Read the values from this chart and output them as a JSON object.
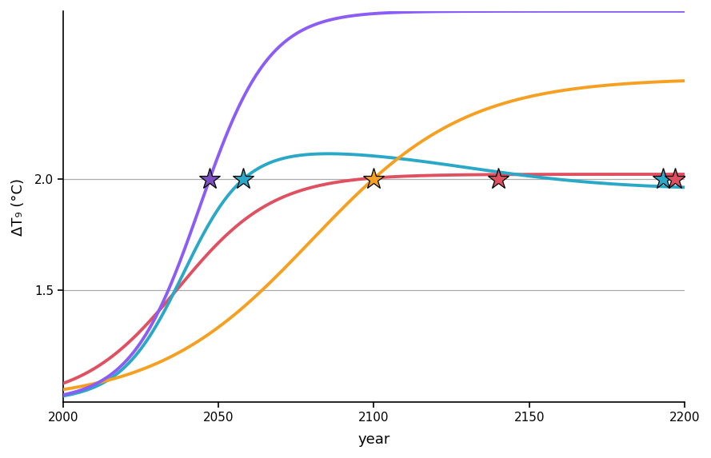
{
  "title": "",
  "xlabel": "year",
  "ylabel": "ΔT₉ (°C)",
  "xlim": [
    2000,
    2200
  ],
  "ylim": [
    1.0,
    2.75
  ],
  "yticks": [
    1.5,
    2.0
  ],
  "xticks": [
    2000,
    2050,
    2100,
    2150,
    2200
  ],
  "hlines": [
    1.5,
    2.0
  ],
  "hline_color": "#aaaaaa",
  "background_color": "#ffffff",
  "purple_color": "#8B5CF6",
  "teal_color": "#29A8C8",
  "red_color": "#E05060",
  "orange_color": "#F5A020",
  "star_y": 2.0,
  "linewidth": 2.8,
  "star_positions": [
    [
      2047,
      "#7B4FBF"
    ],
    [
      2058,
      "#29A8C8"
    ],
    [
      2100,
      "#F5A020"
    ],
    [
      2140,
      "#E05060"
    ],
    [
      2193,
      "#29A8C8"
    ],
    [
      2197,
      "#E05060"
    ]
  ]
}
